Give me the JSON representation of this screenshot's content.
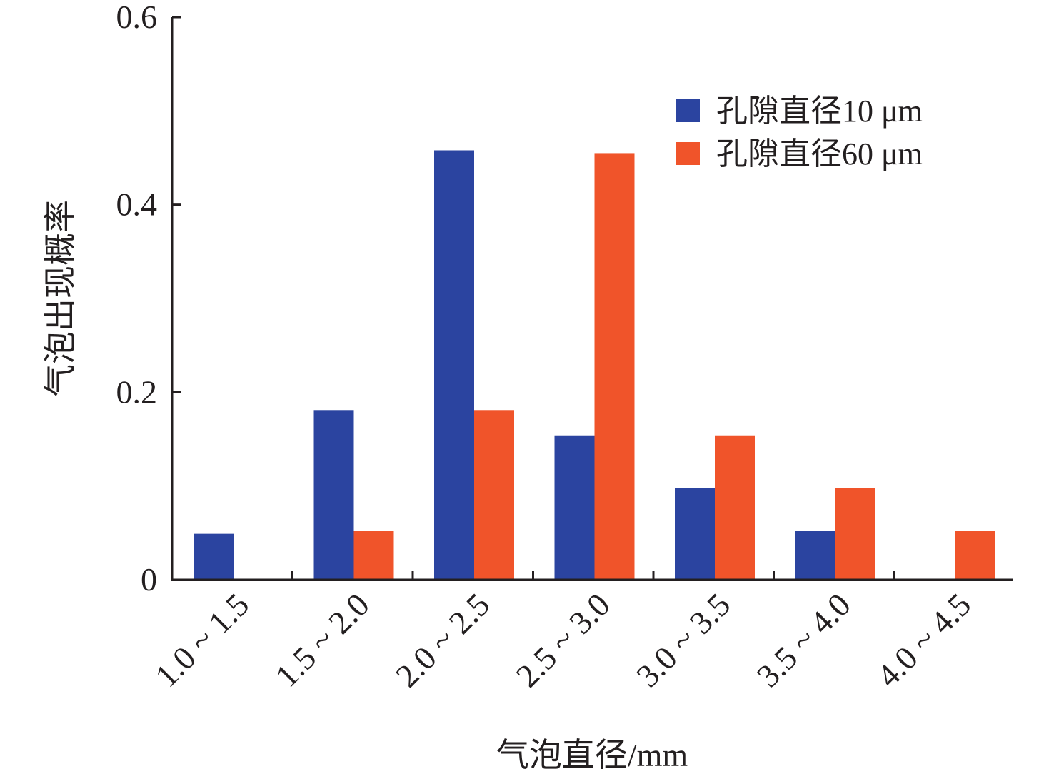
{
  "chart_data": {
    "type": "bar",
    "categories": [
      "1.0 ~ 1.5",
      "1.5 ~ 2.0",
      "2.0 ~ 2.5",
      "2.5 ~ 3.0",
      "3.0 ~ 3.5",
      "3.5 ~ 4.0",
      "4.0 ~ 4.5"
    ],
    "series": [
      {
        "name": "孔隙直径10 μm",
        "color": "#2b44a0",
        "values": [
          0.049,
          0.181,
          0.458,
          0.154,
          0.098,
          0.052,
          0
        ]
      },
      {
        "name": "孔隙直径60 μm",
        "color": "#f0542a",
        "values": [
          0,
          0.052,
          0.181,
          0.455,
          0.154,
          0.098,
          0.052
        ]
      }
    ],
    "title": "",
    "xlabel": "气泡直径/mm",
    "ylabel": "气泡出现概率",
    "ylim": [
      0,
      0.6
    ],
    "yticks": [
      {
        "value": 0,
        "label": "0"
      },
      {
        "value": 0.2,
        "label": "0.2"
      },
      {
        "value": 0.4,
        "label": "0.4"
      },
      {
        "value": 0.6,
        "label": "0.6"
      }
    ],
    "grid": false,
    "legend_position": "top-right"
  }
}
